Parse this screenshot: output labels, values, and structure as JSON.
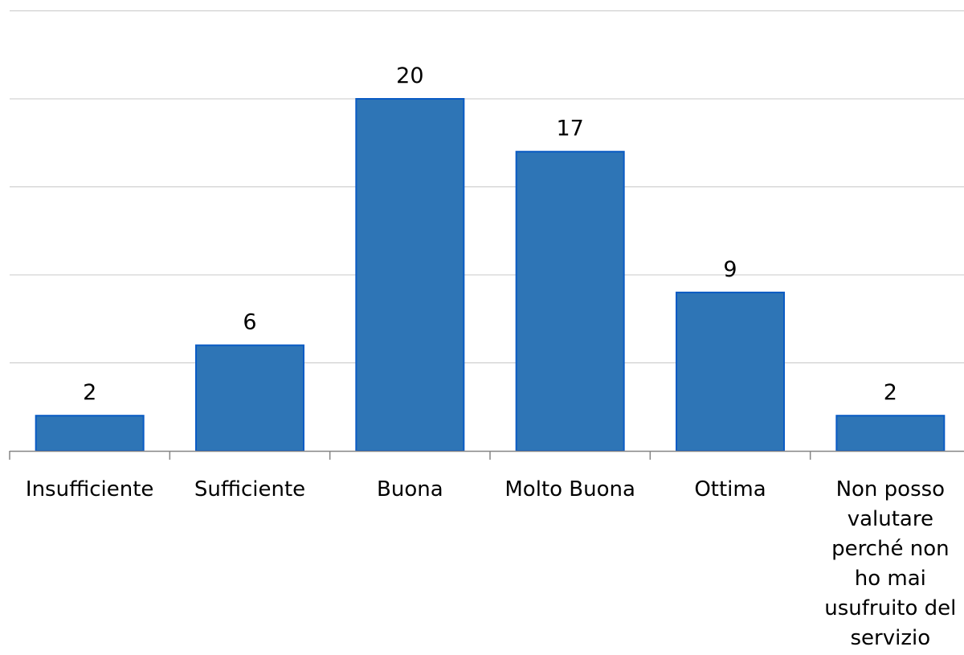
{
  "chart_data": {
    "type": "bar",
    "title": "",
    "xlabel": "",
    "ylabel": "",
    "categories": [
      "Insufficiente",
      "Sufficiente",
      "Buona",
      "Molto Buona",
      "Ottima",
      "Non posso valutare perché non ho mai usufruito del servizio"
    ],
    "category_lines": [
      [
        "Insufficiente"
      ],
      [
        "Sufficiente"
      ],
      [
        "Buona"
      ],
      [
        "Molto Buona"
      ],
      [
        "Ottima"
      ],
      [
        "Non posso",
        "valutare",
        "perché non",
        "ho mai",
        "usufruito del",
        "servizio"
      ]
    ],
    "values": [
      2,
      6,
      20,
      17,
      9,
      2
    ],
    "data_labels": [
      "2",
      "6",
      "20",
      "17",
      "9",
      "2"
    ],
    "ylim": [
      0,
      25
    ],
    "grid": true,
    "legend": "none",
    "colors": {
      "bar_fill": "#2e75b6",
      "bar_stroke": "#0a5bc4",
      "grid": "#c8c8c8",
      "axis": "#868686",
      "text": "#000000"
    }
  }
}
